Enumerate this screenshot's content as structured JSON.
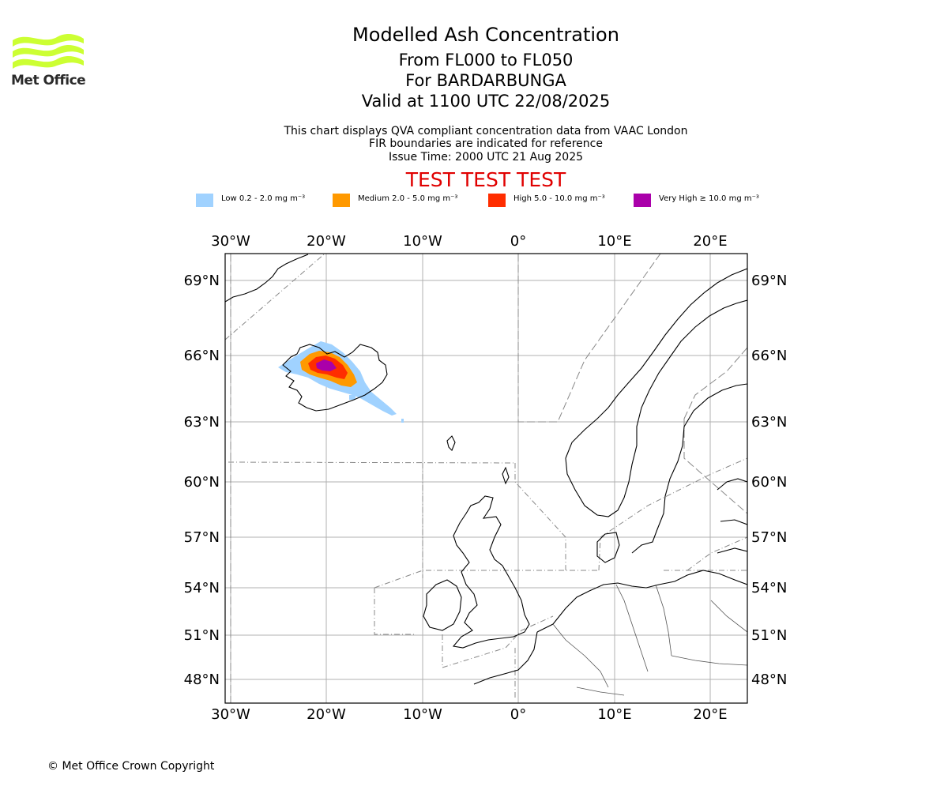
{
  "branding": {
    "logo_text": "Met Office",
    "logo_color": "#ccff33"
  },
  "header": {
    "title": "Modelled Ash Concentration",
    "flight_levels": "From FL000 to FL050",
    "volcano": "For BARDARBUNGA",
    "valid_time": "Valid at 1100 UTC 22/08/2025",
    "info_lines": [
      "This chart displays QVA compliant concentration data from VAAC London",
      "FIR boundaries are indicated for reference",
      "Issue Time: 2000 UTC 21 Aug 2025"
    ],
    "test_banner": "TEST TEST TEST",
    "test_banner_color": "#e00000"
  },
  "legend": [
    {
      "label": "Low 0.2 - 2.0 mg m⁻³",
      "color": "#a0d2ff"
    },
    {
      "label": "Medium 2.0 - 5.0 mg m⁻³",
      "color": "#ff9900"
    },
    {
      "label": "High 5.0 - 10.0 mg m⁻³",
      "color": "#ff2d00"
    },
    {
      "label": "Very High  ≥  10.0 mg m⁻³",
      "color": "#aa00aa"
    }
  ],
  "map": {
    "lon_range": [
      -30.5,
      24
    ],
    "lat_range": [
      47,
      70
    ],
    "lon_ticks": [
      "30°W",
      "20°W",
      "10°W",
      "0°",
      "10°E",
      "20°E"
    ],
    "lat_ticks": [
      "69°N",
      "66°N",
      "63°N",
      "60°N",
      "57°N",
      "54°N",
      "51°N",
      "48°N"
    ],
    "gridlines": true,
    "grid_color": "#b0b0b0"
  },
  "footer": {
    "copyright": "© Met Office Crown Copyright"
  }
}
